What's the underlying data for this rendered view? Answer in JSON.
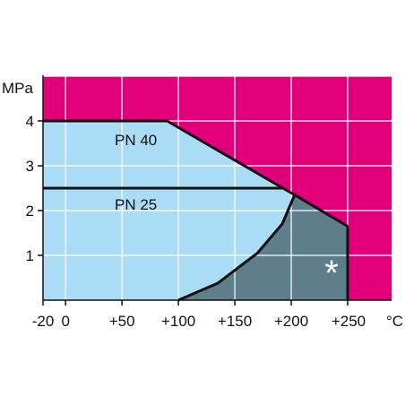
{
  "chart_data": {
    "type": "area",
    "title": "",
    "xlabel": "°C",
    "ylabel": "MPa",
    "xlim": [
      -20,
      250
    ],
    "ylim": [
      0,
      4
    ],
    "grid": true,
    "x_ticks": [
      -20,
      0,
      50,
      100,
      150,
      200,
      250
    ],
    "x_tick_labels": [
      "-20",
      "0",
      "+50",
      "+100",
      "+150",
      "+200",
      "+250"
    ],
    "y_ticks": [
      1,
      2,
      3,
      4
    ],
    "y_tick_labels": [
      "1",
      "2",
      "3",
      "4"
    ],
    "series": [
      {
        "name": "PN 40",
        "x": [
          -20,
          90,
          203
        ],
        "y": [
          4.0,
          4.0,
          2.35
        ]
      },
      {
        "name": "PN 25",
        "x": [
          -20,
          194
        ],
        "y": [
          2.5,
          2.5
        ]
      }
    ],
    "regions": [
      {
        "name": "*",
        "x": [
          100,
          135,
          170,
          192,
          203,
          250,
          250
        ],
        "y": [
          0,
          0.38,
          1.05,
          1.7,
          2.35,
          1.65,
          0
        ]
      }
    ],
    "colors": {
      "outside": "#e2007a",
      "permitted": "#aadcf5",
      "restricted": "#5f7e8c",
      "line": "#111111",
      "grid": "#ffffff"
    }
  }
}
